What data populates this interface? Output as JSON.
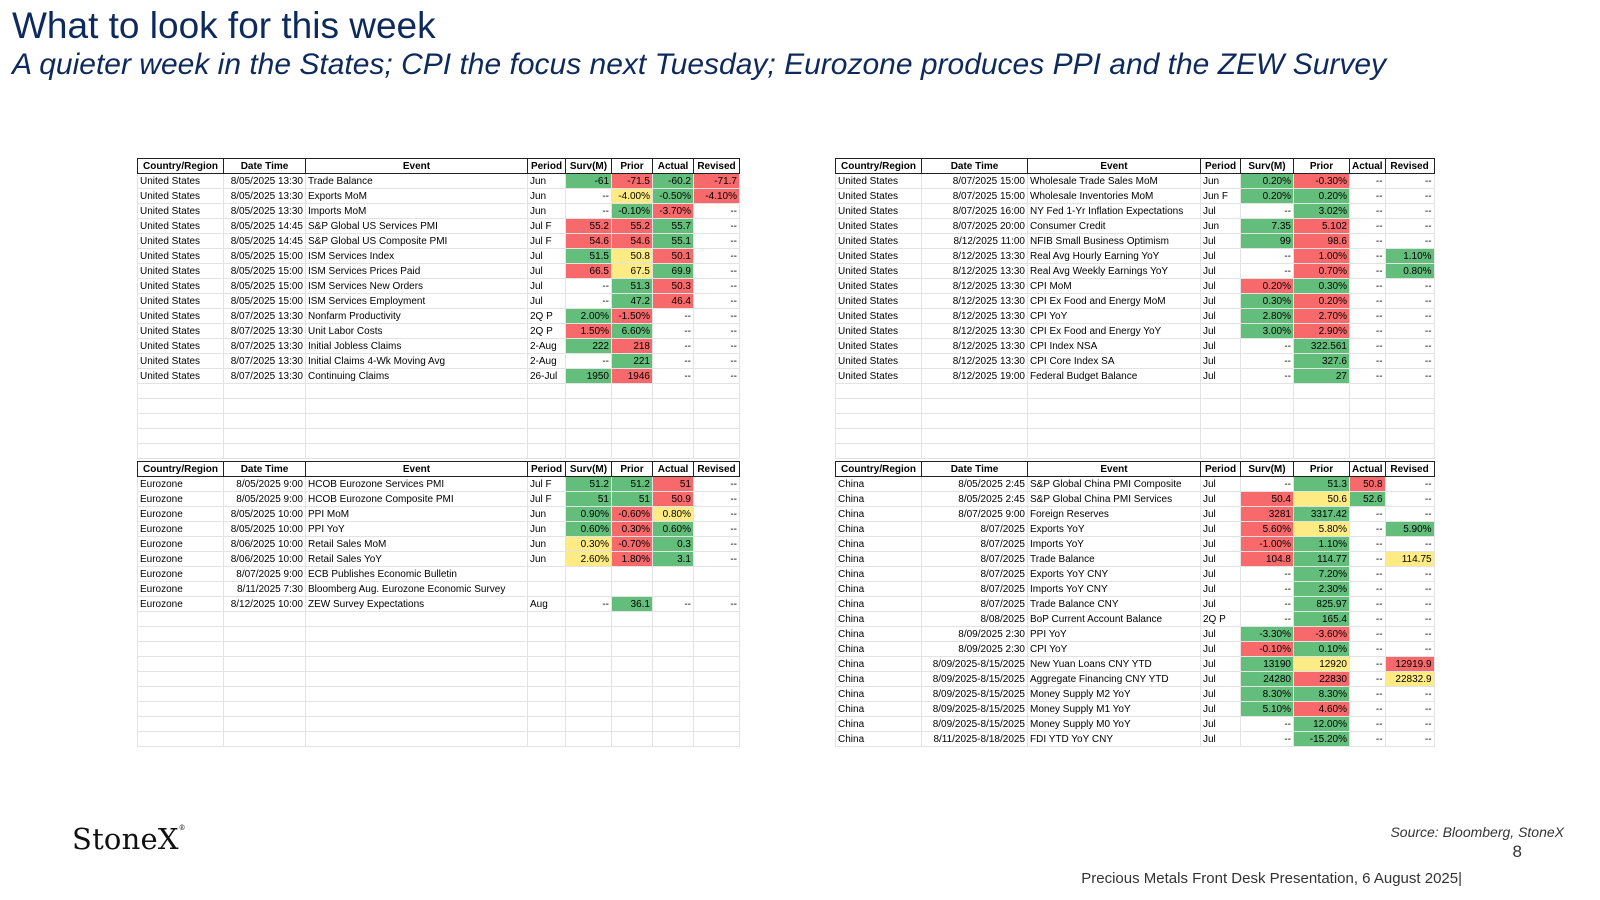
{
  "header": {
    "title": "What to look for this week",
    "subtitle": "A quieter week in the States; CPI the focus next Tuesday; Eurozone produces PPI and the ZEW Survey"
  },
  "columns": [
    "Country/Region",
    "Date Time",
    "Event",
    "Period",
    "Surv(M)",
    "Prior",
    "Actual",
    "Revised"
  ],
  "tables": {
    "us_left": {
      "rows": [
        [
          "United States",
          "8/05/2025 13:30",
          "Trade Balance",
          "Jun",
          "-61",
          "-71.5",
          "-60.2",
          "-71.7"
        ],
        [
          "United States",
          "8/05/2025 13:30",
          "Exports MoM",
          "Jun",
          "--",
          "-4.00%",
          "-0.50%",
          "-4.10%"
        ],
        [
          "United States",
          "8/05/2025 13:30",
          "Imports MoM",
          "Jun",
          "--",
          "-0.10%",
          "-3.70%",
          "--"
        ],
        [
          "United States",
          "8/05/2025 14:45",
          "S&P Global US Services PMI",
          "Jul F",
          "55.2",
          "55.2",
          "55.7",
          "--"
        ],
        [
          "United States",
          "8/05/2025 14:45",
          "S&P Global US Composite PMI",
          "Jul F",
          "54.6",
          "54.6",
          "55.1",
          "--"
        ],
        [
          "United States",
          "8/05/2025 15:00",
          "ISM Services Index",
          "Jul",
          "51.5",
          "50.8",
          "50.1",
          "--"
        ],
        [
          "United States",
          "8/05/2025 15:00",
          "ISM Services Prices Paid",
          "Jul",
          "66.5",
          "67.5",
          "69.9",
          "--"
        ],
        [
          "United States",
          "8/05/2025 15:00",
          "ISM Services New Orders",
          "Jul",
          "--",
          "51.3",
          "50.3",
          "--"
        ],
        [
          "United States",
          "8/05/2025 15:00",
          "ISM Services Employment",
          "Jul",
          "--",
          "47.2",
          "46.4",
          "--"
        ],
        [
          "United States",
          "8/07/2025 13:30",
          "Nonfarm Productivity",
          "2Q P",
          "2.00%",
          "-1.50%",
          "--",
          "--"
        ],
        [
          "United States",
          "8/07/2025 13:30",
          "Unit Labor Costs",
          "2Q P",
          "1.50%",
          "6.60%",
          "--",
          "--"
        ],
        [
          "United States",
          "8/07/2025 13:30",
          "Initial Jobless Claims",
          "2-Aug",
          "222",
          "218",
          "--",
          "--"
        ],
        [
          "United States",
          "8/07/2025 13:30",
          "Initial Claims 4-Wk Moving Avg",
          "2-Aug",
          "--",
          "221",
          "--",
          "--"
        ],
        [
          "United States",
          "8/07/2025 13:30",
          "Continuing Claims",
          "26-Jul",
          "1950",
          "1946",
          "--",
          "--"
        ]
      ],
      "colors": [
        [
          "",
          "",
          "",
          "",
          "green",
          "red",
          "green",
          "red"
        ],
        [
          "",
          "",
          "",
          "",
          "",
          "yellow",
          "green",
          "red"
        ],
        [
          "",
          "",
          "",
          "",
          "",
          "green",
          "red",
          ""
        ],
        [
          "",
          "",
          "",
          "",
          "red",
          "red",
          "green",
          ""
        ],
        [
          "",
          "",
          "",
          "",
          "red",
          "red",
          "green",
          ""
        ],
        [
          "",
          "",
          "",
          "",
          "green",
          "yellow",
          "red",
          ""
        ],
        [
          "",
          "",
          "",
          "",
          "red",
          "yellow",
          "green",
          ""
        ],
        [
          "",
          "",
          "",
          "",
          "",
          "green",
          "red",
          ""
        ],
        [
          "",
          "",
          "",
          "",
          "",
          "green",
          "red",
          ""
        ],
        [
          "",
          "",
          "",
          "",
          "green",
          "red",
          "",
          ""
        ],
        [
          "",
          "",
          "",
          "",
          "red",
          "green",
          "",
          ""
        ],
        [
          "",
          "",
          "",
          "",
          "green",
          "red",
          "",
          ""
        ],
        [
          "",
          "",
          "",
          "",
          "",
          "green",
          "",
          ""
        ],
        [
          "",
          "",
          "",
          "",
          "green",
          "red",
          "",
          ""
        ]
      ]
    },
    "us_right": {
      "rows": [
        [
          "United States",
          "8/07/2025 15:00",
          "Wholesale Trade Sales MoM",
          "Jun",
          "0.20%",
          "-0.30%",
          "--",
          "--"
        ],
        [
          "United States",
          "8/07/2025 15:00",
          "Wholesale Inventories MoM",
          "Jun F",
          "0.20%",
          "0.20%",
          "--",
          "--"
        ],
        [
          "United States",
          "8/07/2025 16:00",
          "NY Fed 1-Yr Inflation Expectations",
          "Jul",
          "--",
          "3.02%",
          "--",
          "--"
        ],
        [
          "United States",
          "8/07/2025 20:00",
          "Consumer Credit",
          "Jun",
          "7.35",
          "5.102",
          "--",
          "--"
        ],
        [
          "United States",
          "8/12/2025 11:00",
          "NFIB Small Business Optimism",
          "Jul",
          "99",
          "98.6",
          "--",
          "--"
        ],
        [
          "United States",
          "8/12/2025 13:30",
          "Real Avg Hourly Earning YoY",
          "Jul",
          "--",
          "1.00%",
          "--",
          "1.10%"
        ],
        [
          "United States",
          "8/12/2025 13:30",
          "Real Avg Weekly Earnings YoY",
          "Jul",
          "--",
          "0.70%",
          "--",
          "0.80%"
        ],
        [
          "United States",
          "8/12/2025 13:30",
          "CPI MoM",
          "Jul",
          "0.20%",
          "0.30%",
          "--",
          "--"
        ],
        [
          "United States",
          "8/12/2025 13:30",
          "CPI Ex Food and Energy MoM",
          "Jul",
          "0.30%",
          "0.20%",
          "--",
          "--"
        ],
        [
          "United States",
          "8/12/2025 13:30",
          "CPI YoY",
          "Jul",
          "2.80%",
          "2.70%",
          "--",
          "--"
        ],
        [
          "United States",
          "8/12/2025 13:30",
          "CPI Ex Food and Energy YoY",
          "Jul",
          "3.00%",
          "2.90%",
          "--",
          "--"
        ],
        [
          "United States",
          "8/12/2025 13:30",
          "CPI Index NSA",
          "Jul",
          "--",
          "322.561",
          "--",
          "--"
        ],
        [
          "United States",
          "8/12/2025 13:30",
          "CPI Core Index SA",
          "Jul",
          "--",
          "327.6",
          "--",
          "--"
        ],
        [
          "United States",
          "8/12/2025 19:00",
          "Federal Budget Balance",
          "Jul",
          "--",
          "27",
          "--",
          "--"
        ]
      ],
      "colors": [
        [
          "",
          "",
          "",
          "",
          "green",
          "red",
          "",
          ""
        ],
        [
          "",
          "",
          "",
          "",
          "green",
          "green",
          "",
          ""
        ],
        [
          "",
          "",
          "",
          "",
          "",
          "green",
          "",
          ""
        ],
        [
          "",
          "",
          "",
          "",
          "green",
          "red",
          "",
          ""
        ],
        [
          "",
          "",
          "",
          "",
          "green",
          "red",
          "",
          ""
        ],
        [
          "",
          "",
          "",
          "",
          "",
          "red",
          "",
          "green"
        ],
        [
          "",
          "",
          "",
          "",
          "",
          "red",
          "",
          "green"
        ],
        [
          "",
          "",
          "",
          "",
          "red",
          "green",
          "",
          ""
        ],
        [
          "",
          "",
          "",
          "",
          "green",
          "red",
          "",
          ""
        ],
        [
          "",
          "",
          "",
          "",
          "green",
          "red",
          "",
          ""
        ],
        [
          "",
          "",
          "",
          "",
          "green",
          "red",
          "",
          ""
        ],
        [
          "",
          "",
          "",
          "",
          "",
          "green",
          "",
          ""
        ],
        [
          "",
          "",
          "",
          "",
          "",
          "green",
          "",
          ""
        ],
        [
          "",
          "",
          "",
          "",
          "",
          "green",
          "",
          ""
        ]
      ]
    },
    "eurozone": {
      "rows": [
        [
          "Eurozone",
          "8/05/2025 9:00",
          "HCOB Eurozone Services PMI",
          "Jul F",
          "51.2",
          "51.2",
          "51",
          "--"
        ],
        [
          "Eurozone",
          "8/05/2025 9:00",
          "HCOB Eurozone Composite PMI",
          "Jul F",
          "51",
          "51",
          "50.9",
          "--"
        ],
        [
          "Eurozone",
          "8/05/2025 10:00",
          "PPI MoM",
          "Jun",
          "0.90%",
          "-0.60%",
          "0.80%",
          "--"
        ],
        [
          "Eurozone",
          "8/05/2025 10:00",
          "PPI YoY",
          "Jun",
          "0.60%",
          "0.30%",
          "0.60%",
          "--"
        ],
        [
          "Eurozone",
          "8/06/2025 10:00",
          "Retail Sales MoM",
          "Jun",
          "0.30%",
          "-0.70%",
          "0.3",
          "--"
        ],
        [
          "Eurozone",
          "8/06/2025 10:00",
          "Retail Sales YoY",
          "Jun",
          "2.60%",
          "1.80%",
          "3.1",
          "--"
        ],
        [
          "Eurozone",
          "8/07/2025 9:00",
          "ECB Publishes Economic Bulletin",
          "",
          "",
          "",
          "",
          ""
        ],
        [
          "Eurozone",
          "8/11/2025 7:30",
          "Bloomberg Aug. Eurozone Economic Survey",
          "",
          "",
          "",
          "",
          ""
        ],
        [
          "Eurozone",
          "8/12/2025 10:00",
          "ZEW Survey Expectations",
          "Aug",
          "--",
          "36.1",
          "--",
          "--"
        ]
      ],
      "colors": [
        [
          "",
          "",
          "",
          "",
          "green",
          "green",
          "red",
          ""
        ],
        [
          "",
          "",
          "",
          "",
          "green",
          "green",
          "red",
          ""
        ],
        [
          "",
          "",
          "",
          "",
          "green",
          "red",
          "yellow",
          ""
        ],
        [
          "",
          "",
          "",
          "",
          "green",
          "red",
          "green",
          ""
        ],
        [
          "",
          "",
          "",
          "",
          "yellow",
          "red",
          "green",
          ""
        ],
        [
          "",
          "",
          "",
          "",
          "yellow",
          "red",
          "green",
          ""
        ],
        [
          "",
          "",
          "",
          "",
          "",
          "",
          "",
          ""
        ],
        [
          "",
          "",
          "",
          "",
          "",
          "",
          "",
          ""
        ],
        [
          "",
          "",
          "",
          "",
          "",
          "green",
          "",
          ""
        ]
      ]
    },
    "china": {
      "rows": [
        [
          "China",
          "8/05/2025 2:45",
          "S&P Global China PMI Composite",
          "Jul",
          "--",
          "51.3",
          "50.8",
          "--"
        ],
        [
          "China",
          "8/05/2025 2:45",
          "S&P Global China PMI Services",
          "Jul",
          "50.4",
          "50.6",
          "52.6",
          "--"
        ],
        [
          "China",
          "8/07/2025 9:00",
          "Foreign Reserves",
          "Jul",
          "3281",
          "3317.42",
          "--",
          "--"
        ],
        [
          "China",
          "8/07/2025",
          "Exports YoY",
          "Jul",
          "5.60%",
          "5.80%",
          "--",
          "5.90%"
        ],
        [
          "China",
          "8/07/2025",
          "Imports YoY",
          "Jul",
          "-1.00%",
          "1.10%",
          "--",
          "--"
        ],
        [
          "China",
          "8/07/2025",
          "Trade Balance",
          "Jul",
          "104.8",
          "114.77",
          "--",
          "114.75"
        ],
        [
          "China",
          "8/07/2025",
          "Exports YoY CNY",
          "Jul",
          "--",
          "7.20%",
          "--",
          "--"
        ],
        [
          "China",
          "8/07/2025",
          "Imports YoY CNY",
          "Jul",
          "--",
          "2.30%",
          "--",
          "--"
        ],
        [
          "China",
          "8/07/2025",
          "Trade Balance CNY",
          "Jul",
          "--",
          "825.97",
          "--",
          "--"
        ],
        [
          "China",
          "8/08/2025",
          "BoP Current Account Balance",
          "2Q P",
          "--",
          "165.4",
          "--",
          "--"
        ],
        [
          "China",
          "8/09/2025 2:30",
          "PPI YoY",
          "Jul",
          "-3.30%",
          "-3.60%",
          "--",
          "--"
        ],
        [
          "China",
          "8/09/2025 2:30",
          "CPI YoY",
          "Jul",
          "-0.10%",
          "0.10%",
          "--",
          "--"
        ],
        [
          "China",
          "8/09/2025-8/15/2025",
          "New Yuan Loans CNY YTD",
          "Jul",
          "13190",
          "12920",
          "--",
          "12919.9"
        ],
        [
          "China",
          "8/09/2025-8/15/2025",
          "Aggregate Financing CNY YTD",
          "Jul",
          "24280",
          "22830",
          "--",
          "22832.9"
        ],
        [
          "China",
          "8/09/2025-8/15/2025",
          "Money Supply M2 YoY",
          "Jul",
          "8.30%",
          "8.30%",
          "--",
          "--"
        ],
        [
          "China",
          "8/09/2025-8/15/2025",
          "Money Supply M1 YoY",
          "Jul",
          "5.10%",
          "4.60%",
          "--",
          "--"
        ],
        [
          "China",
          "8/09/2025-8/15/2025",
          "Money Supply M0 YoY",
          "Jul",
          "--",
          "12.00%",
          "--",
          "--"
        ],
        [
          "China",
          "8/11/2025-8/18/2025",
          "FDI YTD YoY CNY",
          "Jul",
          "--",
          "-15.20%",
          "--",
          "--"
        ]
      ],
      "colors": [
        [
          "",
          "",
          "",
          "",
          "",
          "green",
          "red",
          ""
        ],
        [
          "",
          "",
          "",
          "",
          "red",
          "yellow",
          "green",
          ""
        ],
        [
          "",
          "",
          "",
          "",
          "red",
          "green",
          "",
          ""
        ],
        [
          "",
          "",
          "",
          "",
          "red",
          "yellow",
          "",
          "green"
        ],
        [
          "",
          "",
          "",
          "",
          "red",
          "green",
          "",
          ""
        ],
        [
          "",
          "",
          "",
          "",
          "red",
          "green",
          "",
          "yellow"
        ],
        [
          "",
          "",
          "",
          "",
          "",
          "green",
          "",
          ""
        ],
        [
          "",
          "",
          "",
          "",
          "",
          "green",
          "",
          ""
        ],
        [
          "",
          "",
          "",
          "",
          "",
          "green",
          "",
          ""
        ],
        [
          "",
          "",
          "",
          "",
          "",
          "green",
          "",
          ""
        ],
        [
          "",
          "",
          "",
          "",
          "green",
          "red",
          "",
          ""
        ],
        [
          "",
          "",
          "",
          "",
          "red",
          "green",
          "",
          ""
        ],
        [
          "",
          "",
          "",
          "",
          "green",
          "yellow",
          "",
          "red"
        ],
        [
          "",
          "",
          "",
          "",
          "green",
          "red",
          "",
          "yellow"
        ],
        [
          "",
          "",
          "",
          "",
          "green",
          "green",
          "",
          ""
        ],
        [
          "",
          "",
          "",
          "",
          "green",
          "red",
          "",
          ""
        ],
        [
          "",
          "",
          "",
          "",
          "",
          "green",
          "",
          ""
        ],
        [
          "",
          "",
          "",
          "",
          "",
          "green",
          "",
          ""
        ]
      ]
    }
  },
  "footer": {
    "logo": "StoneX",
    "logo_mark": "®",
    "source": "Source: Bloomberg, StoneX",
    "page_number": "8",
    "presentation": "Precious Metals Front Desk Presentation, 6 August 2025|"
  },
  "colors": {
    "title": "#0e2a5c",
    "green": "#63be7b",
    "red": "#f8696b",
    "yellow": "#ffeb84"
  }
}
